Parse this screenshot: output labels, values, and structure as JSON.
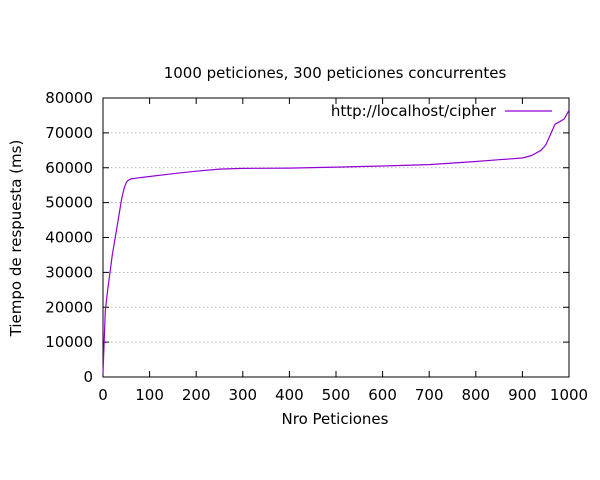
{
  "chart_data": {
    "type": "line",
    "title": "1000 peticiones, 300 peticiones concurrentes",
    "xlabel": "Nro Peticiones",
    "ylabel": "Tiempo de respuesta (ms)",
    "xlim": [
      0,
      1000
    ],
    "ylim": [
      0,
      80000
    ],
    "x_ticks": [
      0,
      100,
      200,
      300,
      400,
      500,
      600,
      700,
      800,
      900,
      1000
    ],
    "y_ticks": [
      0,
      10000,
      20000,
      30000,
      40000,
      50000,
      60000,
      70000,
      80000
    ],
    "grid": "horizontal dotted",
    "legend_position": "top-right",
    "series": [
      {
        "name": "http://localhost/cipher",
        "color": "#9400d3",
        "x": [
          0,
          5,
          10,
          20,
          30,
          40,
          45,
          50,
          55,
          60,
          70,
          100,
          150,
          200,
          250,
          300,
          400,
          500,
          600,
          700,
          800,
          850,
          900,
          920,
          940,
          950,
          960,
          970,
          980,
          990,
          1000
        ],
        "y": [
          1000,
          19000,
          25000,
          35000,
          43000,
          51000,
          54000,
          55800,
          56500,
          56800,
          57000,
          57500,
          58300,
          59000,
          59600,
          59800,
          59900,
          60200,
          60500,
          60900,
          61800,
          62300,
          62800,
          63500,
          65000,
          66500,
          69500,
          72500,
          73200,
          74000,
          76500
        ]
      }
    ]
  }
}
